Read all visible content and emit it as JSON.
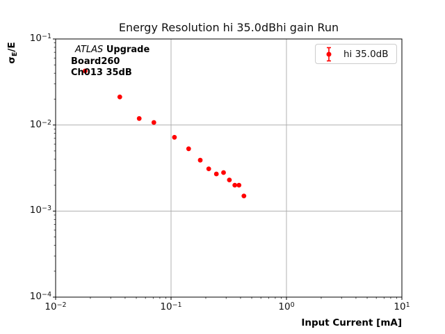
{
  "figure": {
    "background": "#ffffff",
    "border_color": "#000000",
    "tick_color": "#000000"
  },
  "chart_data": {
    "type": "scatter",
    "title": "Energy Resolution hi 35.0dBhi gain Run",
    "xlabel": "Input Current [mA]",
    "ylabel": "σE/E",
    "ylabel_parts": {
      "sigma": "σ",
      "sub": "E",
      "rest": "/E"
    },
    "x_scale": "log",
    "y_scale": "log",
    "xlim": [
      0.01,
      10
    ],
    "ylim": [
      0.0001,
      0.1
    ],
    "x_tick_exponents": [
      -2,
      -1,
      0,
      1
    ],
    "y_tick_exponents": [
      -1,
      -2,
      -3,
      -4
    ],
    "grid": true,
    "grid_color": "#b0b0b0",
    "legend": {
      "position": "upper right",
      "label": "hi 35.0dB",
      "marker": "errorbar-circle",
      "color": "#ff0000",
      "border_color": "#cccccc"
    },
    "annotation": {
      "line1_italic": "ATLAS",
      "line1_bold": "Upgrade",
      "line2": "Board260",
      "line3": "Ch013 35dB"
    },
    "series": [
      {
        "name": "hi 35.0dB",
        "color": "#ff0000",
        "marker": "circle",
        "marker_size_px": 6.8,
        "x": [
          0.018,
          0.036,
          0.053,
          0.071,
          0.107,
          0.142,
          0.179,
          0.212,
          0.247,
          0.285,
          0.32,
          0.357,
          0.388,
          0.428
        ],
        "y": [
          0.0425,
          0.0212,
          0.0119,
          0.0107,
          0.0072,
          0.0053,
          0.0039,
          0.0031,
          0.0027,
          0.0028,
          0.0023,
          0.002,
          0.002,
          0.0015
        ]
      }
    ]
  }
}
